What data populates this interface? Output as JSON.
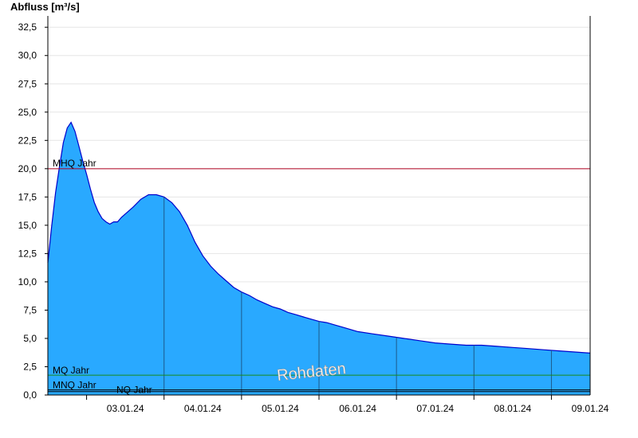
{
  "chart_data": {
    "type": "area",
    "ylabel": "Abfluss [m³/s]",
    "ylim": [
      0,
      33.5
    ],
    "yticks": [
      0,
      2.5,
      5,
      7.5,
      10,
      12.5,
      15,
      17.5,
      20,
      22.5,
      25,
      27.5,
      30,
      32.5
    ],
    "ytick_labels": [
      "0,0",
      "2,5",
      "5,0",
      "7,5",
      "10,0",
      "12,5",
      "15,0",
      "17,5",
      "20,0",
      "22,5",
      "25,0",
      "27,5",
      "30,0",
      "32,5"
    ],
    "xlim": [
      2.0,
      9.0
    ],
    "xticks": [
      3,
      4,
      5,
      6,
      7,
      8,
      9
    ],
    "xtick_labels": [
      "03.01.24",
      "04.01.24",
      "05.01.24",
      "06.01.24",
      "07.01.24",
      "08.01.24",
      "09.01.24"
    ],
    "grid": true,
    "fill_color": "#29a9ff",
    "line_color": "#0000cc",
    "series": [
      {
        "x": [
          2.0,
          2.05,
          2.1,
          2.15,
          2.2,
          2.25,
          2.3,
          2.35,
          2.4,
          2.45,
          2.5,
          2.55,
          2.6,
          2.65,
          2.7,
          2.75,
          2.8,
          2.85,
          2.9,
          2.95,
          3.0,
          3.1,
          3.2,
          3.3,
          3.4,
          3.5,
          3.6,
          3.7,
          3.8,
          3.9,
          4.0,
          4.1,
          4.2,
          4.3,
          4.4,
          4.5,
          4.6,
          4.7,
          4.8,
          4.9,
          5.0,
          5.1,
          5.2,
          5.3,
          5.4,
          5.5,
          5.6,
          5.7,
          5.8,
          5.9,
          6.0,
          6.2,
          6.4,
          6.6,
          6.8,
          7.0,
          7.2,
          7.4,
          7.6,
          7.8,
          8.0,
          8.2,
          8.4,
          8.6,
          8.8,
          9.0
        ],
        "y": [
          11.7,
          15.0,
          17.9,
          20.2,
          22.3,
          23.6,
          24.1,
          23.3,
          22.0,
          20.7,
          19.5,
          18.2,
          17.0,
          16.2,
          15.6,
          15.3,
          15.1,
          15.3,
          15.3,
          15.7,
          16.0,
          16.6,
          17.3,
          17.7,
          17.7,
          17.5,
          17.0,
          16.2,
          15.0,
          13.5,
          12.3,
          11.4,
          10.7,
          10.1,
          9.5,
          9.1,
          8.8,
          8.4,
          8.1,
          7.8,
          7.6,
          7.3,
          7.1,
          6.9,
          6.7,
          6.5,
          6.4,
          6.2,
          6.0,
          5.8,
          5.6,
          5.4,
          5.2,
          5.0,
          4.8,
          4.6,
          4.5,
          4.4,
          4.4,
          4.3,
          4.2,
          4.1,
          4.0,
          3.9,
          3.8,
          3.7
        ]
      }
    ],
    "reference_lines": [
      {
        "label": "MHQ Jahr",
        "value": 20.0,
        "color": "#b00020"
      },
      {
        "label": "MQ Jahr",
        "value": 1.75,
        "color": "#1a8a1a"
      },
      {
        "label": "MNQ Jahr",
        "value": 0.45,
        "color": "#000000"
      },
      {
        "label": "NQ Jahr",
        "value": 0.3,
        "color": "#000000"
      }
    ],
    "annotations": [
      {
        "text": "Rohdaten"
      }
    ]
  }
}
